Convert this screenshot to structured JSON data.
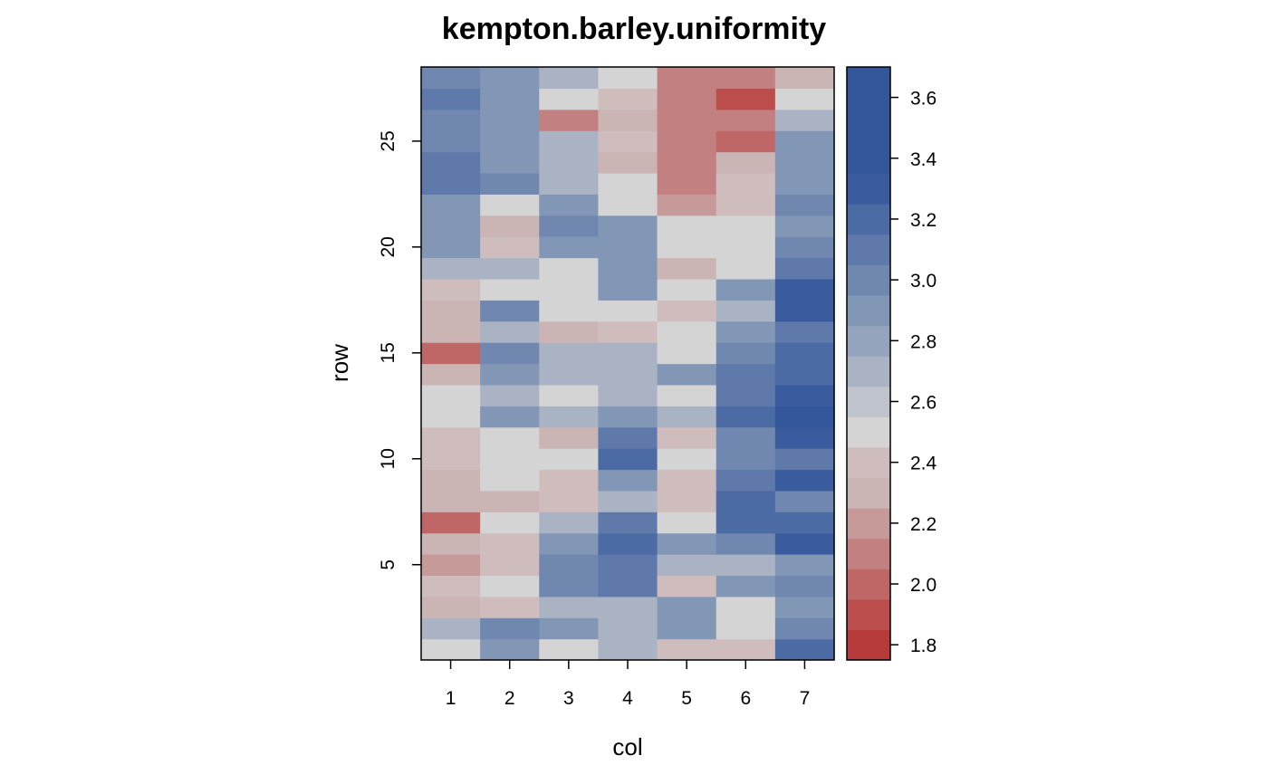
{
  "chart_data": {
    "type": "heatmap",
    "title": "kempton.barley.uniformity",
    "xlabel": "col",
    "ylabel": "row",
    "x_categories": [
      1,
      2,
      3,
      4,
      5,
      6,
      7
    ],
    "xlim": [
      0.5,
      7.5
    ],
    "ylim": [
      0.5,
      28.5
    ],
    "x_ticks": [
      "1",
      "2",
      "3",
      "4",
      "5",
      "6",
      "7"
    ],
    "y_ticks": [
      "5",
      "10",
      "15",
      "20",
      "25"
    ],
    "colorbar": {
      "range": [
        1.75,
        3.7
      ],
      "ticks": [
        "1.8",
        "2.0",
        "2.2",
        "2.4",
        "2.6",
        "2.8",
        "3.0",
        "3.2",
        "3.4",
        "3.6"
      ],
      "breaks": [
        1.75,
        1.85,
        1.95,
        2.05,
        2.15,
        2.25,
        2.35,
        2.45,
        2.55,
        2.65,
        2.75,
        2.85,
        2.95,
        3.05,
        3.15,
        3.25,
        3.35,
        3.45,
        3.55,
        3.7
      ],
      "colors": [
        "#b73a3a",
        "#bb4d4d",
        "#bf6767",
        "#c38080",
        "#c79a9a",
        "#cbb4b4",
        "#cfbdbd",
        "#d4d4d4",
        "#bec3cc",
        "#aab3c4",
        "#95a3bc",
        "#8296b6",
        "#7088b0",
        "#5e79aa",
        "#4c6aa4",
        "#3a5b9e",
        "#33579a",
        "#33579a",
        "#33579a"
      ]
    },
    "rows_bottom_to_top": [
      [
        2.45,
        2.85,
        2.45,
        2.65,
        2.35,
        2.35,
        3.15
      ],
      [
        2.65,
        2.95,
        2.85,
        2.65,
        2.85,
        2.45,
        2.95
      ],
      [
        2.25,
        2.35,
        2.65,
        2.65,
        2.85,
        2.45,
        2.85
      ],
      [
        2.35,
        2.45,
        2.95,
        3.05,
        2.35,
        2.85,
        2.95
      ],
      [
        2.15,
        2.35,
        2.95,
        3.05,
        2.65,
        2.65,
        2.85
      ],
      [
        2.25,
        2.35,
        2.85,
        3.15,
        2.85,
        2.95,
        3.25
      ],
      [
        1.95,
        2.45,
        2.65,
        3.05,
        2.45,
        3.15,
        3.15
      ],
      [
        2.25,
        2.25,
        2.35,
        2.65,
        2.35,
        3.15,
        2.95
      ],
      [
        2.25,
        2.45,
        2.35,
        2.85,
        2.35,
        3.05,
        3.25
      ],
      [
        2.35,
        2.45,
        2.45,
        3.15,
        2.45,
        2.95,
        3.05
      ],
      [
        2.35,
        2.45,
        2.25,
        3.05,
        2.35,
        2.95,
        3.25
      ],
      [
        2.45,
        2.85,
        2.65,
        2.85,
        2.65,
        3.15,
        3.55
      ],
      [
        2.45,
        2.65,
        2.45,
        2.65,
        2.45,
        3.05,
        3.25
      ],
      [
        2.25,
        2.85,
        2.65,
        2.65,
        2.85,
        3.05,
        3.15
      ],
      [
        1.95,
        2.95,
        2.65,
        2.65,
        2.45,
        2.95,
        3.15
      ],
      [
        2.25,
        2.65,
        2.25,
        2.35,
        2.45,
        2.85,
        3.05
      ],
      [
        2.25,
        2.95,
        2.45,
        2.45,
        2.35,
        2.65,
        3.25
      ],
      [
        2.35,
        2.45,
        2.45,
        2.85,
        2.45,
        2.85,
        3.25
      ],
      [
        2.65,
        2.65,
        2.45,
        2.85,
        2.25,
        2.45,
        3.05
      ],
      [
        2.85,
        2.35,
        2.85,
        2.85,
        2.45,
        2.45,
        2.95
      ],
      [
        2.85,
        2.25,
        2.95,
        2.85,
        2.45,
        2.45,
        2.85
      ],
      [
        2.85,
        2.45,
        2.85,
        2.45,
        2.15,
        2.35,
        2.95
      ],
      [
        3.05,
        2.95,
        2.65,
        2.45,
        2.05,
        2.35,
        2.85
      ],
      [
        3.05,
        2.85,
        2.65,
        2.25,
        2.05,
        2.25,
        2.85
      ],
      [
        2.95,
        2.85,
        2.65,
        2.35,
        2.05,
        1.95,
        2.85
      ],
      [
        2.95,
        2.85,
        2.05,
        2.25,
        2.05,
        2.05,
        2.65
      ],
      [
        3.05,
        2.85,
        2.45,
        2.35,
        2.05,
        1.85,
        2.45
      ],
      [
        2.95,
        2.85,
        2.65,
        2.45,
        2.05,
        2.05,
        2.25
      ]
    ]
  }
}
